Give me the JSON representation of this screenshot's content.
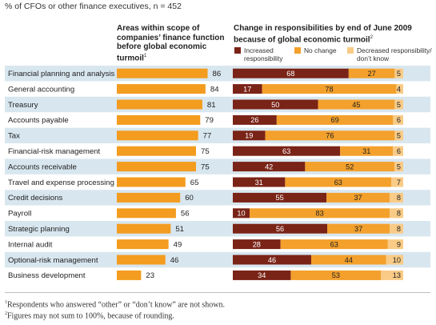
{
  "subtitle": "% of CFOs or other finance executives, n = 452",
  "left_header": {
    "text": "Areas within scope of companies’ finance function before global economic turmoil",
    "note": "1"
  },
  "right_header": {
    "text": "Change in responsibilities by end of June 2009 because of global economic turmoil",
    "note": "2"
  },
  "colors": {
    "increased": "#7a2317",
    "no_change": "#f3a02c",
    "decreased": "#f9cb86",
    "scope_bar": "#f39c1f",
    "row_band": "#d8e6ef"
  },
  "legend": [
    {
      "key": "increased",
      "label": "Increased responsibility"
    },
    {
      "key": "no_change",
      "label": "No change"
    },
    {
      "key": "decreased",
      "label": "Decreased responsibility/ don’t know"
    }
  ],
  "chart_data": [
    {
      "type": "bar",
      "title": "Areas within scope of companies’ finance function before global economic turmoil",
      "categories": [
        "Financial planning and analysis",
        "General accounting",
        "Treasury",
        "Accounts payable",
        "Tax",
        "Financial-risk management",
        "Accounts receivable",
        "Travel and expense processing",
        "Credit decisions",
        "Payroll",
        "Strategic planning",
        "Internal audit",
        "Optional-risk management",
        "Business development"
      ],
      "values": [
        86,
        84,
        81,
        79,
        77,
        75,
        75,
        65,
        60,
        56,
        51,
        49,
        46,
        23
      ],
      "xlim": [
        0,
        100
      ]
    },
    {
      "type": "bar",
      "stacked": true,
      "title": "Change in responsibilities by end of June 2009 because of global economic turmoil",
      "categories": [
        "Financial planning and analysis",
        "General accounting",
        "Treasury",
        "Accounts payable",
        "Tax",
        "Financial-risk management",
        "Accounts receivable",
        "Travel and expense processing",
        "Credit decisions",
        "Payroll",
        "Strategic planning",
        "Internal audit",
        "Optional-risk management",
        "Business development"
      ],
      "series": [
        {
          "name": "Increased responsibility",
          "values": [
            68,
            17,
            50,
            26,
            19,
            63,
            42,
            31,
            55,
            10,
            56,
            28,
            46,
            34
          ]
        },
        {
          "name": "No change",
          "values": [
            27,
            78,
            45,
            69,
            76,
            31,
            52,
            63,
            37,
            83,
            37,
            63,
            44,
            53
          ]
        },
        {
          "name": "Decreased responsibility/ don’t know",
          "values": [
            5,
            4,
            5,
            6,
            5,
            6,
            5,
            7,
            8,
            8,
            8,
            9,
            10,
            13
          ]
        }
      ]
    }
  ],
  "footnotes": [
    {
      "mark": "1",
      "text": "Respondents who answered “other” or “don’t know” are not shown."
    },
    {
      "mark": "2",
      "text": "Figures may not sum to 100%, because of rounding."
    }
  ]
}
